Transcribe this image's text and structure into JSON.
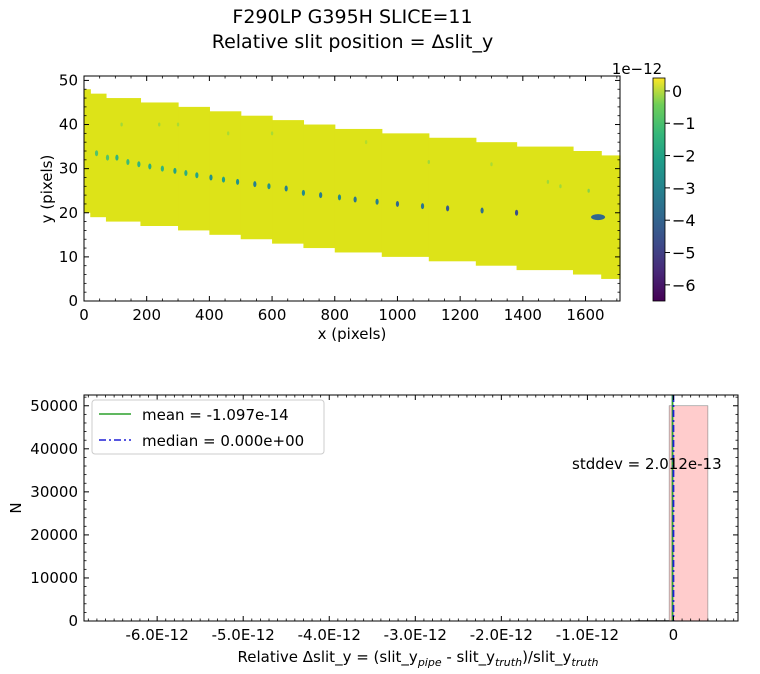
{
  "figure": {
    "title_line1": "F290LP   G395H   SLICE=11",
    "title_line2": "Relative slit position = Δslit_y"
  },
  "chart_data": [
    {
      "type": "heatmap",
      "xlabel": "x (pixels)",
      "ylabel": "y (pixels)",
      "xlim": [
        0,
        1710
      ],
      "ylim": [
        0,
        51
      ],
      "xticks": [
        0,
        200,
        400,
        600,
        800,
        1000,
        1200,
        1400,
        1600
      ],
      "yticks": [
        0,
        10,
        20,
        30,
        40,
        50
      ],
      "colormap": "viridis",
      "background_value_color": "#dde318",
      "strip_band": [
        {
          "x0": 0,
          "x1": 20,
          "y_bottom": 20,
          "y_top": 48
        },
        {
          "x0": 20,
          "x1": 70,
          "y_bottom": 19,
          "y_top": 47
        },
        {
          "x0": 70,
          "x1": 180,
          "y_bottom": 18,
          "y_top": 46
        },
        {
          "x0": 180,
          "x1": 300,
          "y_bottom": 17,
          "y_top": 45
        },
        {
          "x0": 300,
          "x1": 400,
          "y_bottom": 16,
          "y_top": 44
        },
        {
          "x0": 400,
          "x1": 500,
          "y_bottom": 15,
          "y_top": 43
        },
        {
          "x0": 500,
          "x1": 600,
          "y_bottom": 14,
          "y_top": 42
        },
        {
          "x0": 600,
          "x1": 700,
          "y_bottom": 13,
          "y_top": 41
        },
        {
          "x0": 700,
          "x1": 800,
          "y_bottom": 12,
          "y_top": 40
        },
        {
          "x0": 800,
          "x1": 950,
          "y_bottom": 11,
          "y_top": 39
        },
        {
          "x0": 950,
          "x1": 1100,
          "y_bottom": 10,
          "y_top": 38
        },
        {
          "x0": 1100,
          "x1": 1250,
          "y_bottom": 9,
          "y_top": 37
        },
        {
          "x0": 1250,
          "x1": 1380,
          "y_bottom": 8,
          "y_top": 36
        },
        {
          "x0": 1380,
          "x1": 1560,
          "y_bottom": 7,
          "y_top": 35
        },
        {
          "x0": 1560,
          "x1": 1650,
          "y_bottom": 6,
          "y_top": 34
        },
        {
          "x0": 1650,
          "x1": 1710,
          "y_bottom": 5,
          "y_top": 33
        }
      ],
      "spots": [
        {
          "x": 40,
          "y": 33.5,
          "value": -1.5
        },
        {
          "x": 75,
          "y": 32.5,
          "value": -1.5
        },
        {
          "x": 105,
          "y": 32.5,
          "value": -2.0
        },
        {
          "x": 140,
          "y": 31.5,
          "value": -1.8
        },
        {
          "x": 175,
          "y": 31,
          "value": -2.0
        },
        {
          "x": 210,
          "y": 30.5,
          "value": -2.2
        },
        {
          "x": 250,
          "y": 30,
          "value": -2.0
        },
        {
          "x": 290,
          "y": 29.5,
          "value": -2.5
        },
        {
          "x": 325,
          "y": 29,
          "value": -2.2
        },
        {
          "x": 360,
          "y": 28.5,
          "value": -2.5
        },
        {
          "x": 405,
          "y": 28,
          "value": -3.0
        },
        {
          "x": 445,
          "y": 27.5,
          "value": -2.6
        },
        {
          "x": 490,
          "y": 27,
          "value": -3.0
        },
        {
          "x": 545,
          "y": 26.5,
          "value": -3.5
        },
        {
          "x": 590,
          "y": 26,
          "value": -3.0
        },
        {
          "x": 645,
          "y": 25.5,
          "value": -3.5
        },
        {
          "x": 700,
          "y": 24.5,
          "value": -3.2
        },
        {
          "x": 755,
          "y": 24,
          "value": -3.6
        },
        {
          "x": 815,
          "y": 23.5,
          "value": -3.2
        },
        {
          "x": 865,
          "y": 23,
          "value": -3.8
        },
        {
          "x": 935,
          "y": 22.5,
          "value": -3.5
        },
        {
          "x": 1000,
          "y": 22,
          "value": -4.2
        },
        {
          "x": 1080,
          "y": 21.5,
          "value": -3.8
        },
        {
          "x": 1160,
          "y": 21,
          "value": -4.5
        },
        {
          "x": 1270,
          "y": 20.5,
          "value": -4.0
        },
        {
          "x": 1380,
          "y": 20,
          "value": -4.8
        },
        {
          "x": 1640,
          "y": 19,
          "value": -4.2
        }
      ],
      "faint_spots": [
        {
          "x": 120,
          "y": 40,
          "value": -0.6
        },
        {
          "x": 240,
          "y": 40,
          "value": -0.6
        },
        {
          "x": 300,
          "y": 40,
          "value": -0.5
        },
        {
          "x": 460,
          "y": 38,
          "value": -0.5
        },
        {
          "x": 600,
          "y": 38,
          "value": -0.5
        },
        {
          "x": 900,
          "y": 36,
          "value": -0.4
        },
        {
          "x": 1100,
          "y": 31.5,
          "value": -0.6
        },
        {
          "x": 1300,
          "y": 31,
          "value": -0.5
        },
        {
          "x": 1480,
          "y": 27,
          "value": -0.6
        },
        {
          "x": 1520,
          "y": 26,
          "value": -0.6
        },
        {
          "x": 1610,
          "y": 25,
          "value": -0.9
        }
      ],
      "colorbar": {
        "multiplier_label": "1e−12",
        "min": -6.5,
        "max": 0.4,
        "ticks": [
          0,
          -1,
          -2,
          -3,
          -4,
          -5,
          -6
        ],
        "tick_labels": [
          "0",
          "−1",
          "−2",
          "−3",
          "−4",
          "−5",
          "−6"
        ]
      }
    },
    {
      "type": "bar",
      "xlabel": "Relative Δslit_y = (slit_y",
      "xlabel_sub1": "pipe",
      "xlabel_mid": " - slit_y",
      "xlabel_sub2": "truth",
      "xlabel_end": ")/slit_y",
      "xlabel_sub3": "truth",
      "ylabel": "N",
      "xlim": [
        -6.85e-12,
        7.5e-13
      ],
      "ylim": [
        0,
        52500
      ],
      "xticks": [
        -6e-12,
        -5e-12,
        -4e-12,
        -3e-12,
        -2e-12,
        -1e-12,
        0
      ],
      "xtick_labels": [
        "-6.0E-12",
        "-5.0E-12",
        "-4.0E-12",
        "-3.0E-12",
        "-2.0E-12",
        "-1.0E-12",
        "0"
      ],
      "yticks": [
        0,
        10000,
        20000,
        30000,
        40000,
        50000
      ],
      "ytick_labels": [
        "0",
        "10000",
        "20000",
        "30000",
        "40000",
        "50000"
      ],
      "bins": [
        {
          "x0": -4.4e-13,
          "x1": -5e-14,
          "count": 150
        },
        {
          "x0": -5e-14,
          "x1": 4e-13,
          "count": 50000
        }
      ],
      "bar_color": "#ff9999",
      "mean": -1.097e-14,
      "median": 0.0,
      "legend": [
        {
          "label": "mean = -1.097e-14",
          "color": "#2ca02c",
          "style": "solid"
        },
        {
          "label": "median = 0.000e+00",
          "color": "#1f1fd6",
          "style": "dashdot"
        }
      ],
      "legend_position": "top-left",
      "annotation": "stddev = 2.012e-13"
    }
  ]
}
